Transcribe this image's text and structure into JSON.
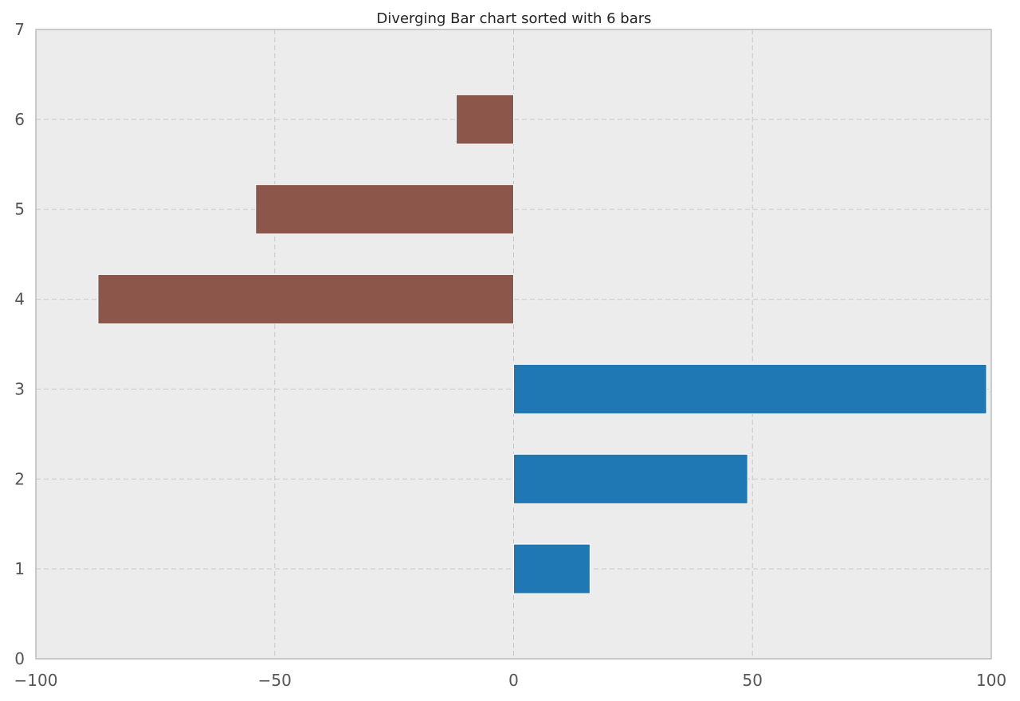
{
  "chart_data": {
    "type": "bar",
    "orientation": "horizontal",
    "title": "Diverging Bar chart sorted with 6 bars",
    "xlabel": "",
    "ylabel": "",
    "xlim": [
      -100,
      100
    ],
    "ylim": [
      0,
      7
    ],
    "xticks": [
      -100,
      -50,
      0,
      50,
      100
    ],
    "xtick_labels": [
      "−100",
      "−50",
      "0",
      "50",
      "100"
    ],
    "yticks": [
      0,
      1,
      2,
      3,
      4,
      5,
      6,
      7
    ],
    "ytick_labels": [
      "0",
      "1",
      "2",
      "3",
      "4",
      "5",
      "6",
      "7"
    ],
    "categories": [
      1,
      2,
      3,
      4,
      5,
      6
    ],
    "values": [
      16,
      49,
      99,
      -87,
      -54,
      -12
    ],
    "bar_height": 0.55,
    "grid": true,
    "colors": {
      "positive": "#1f77b4",
      "negative": "#8c564b",
      "plot_background": "#ececec",
      "grid": "#c8c8c8",
      "frame": "#bcbcbc"
    }
  }
}
